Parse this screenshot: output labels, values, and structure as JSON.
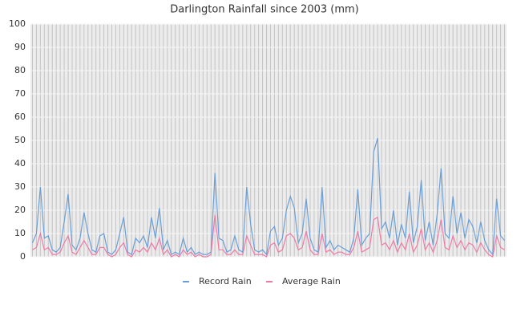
{
  "chart_data": {
    "type": "line",
    "title": "Darlington Rainfall since 2003 (mm)",
    "categories": [
      null,
      null,
      null,
      null,
      null,
      null,
      null,
      null,
      null,
      null,
      null,
      null,
      null,
      null,
      null,
      null,
      null,
      null,
      null,
      null,
      null,
      null,
      null,
      null,
      null,
      null,
      null,
      null,
      null,
      null,
      null,
      null,
      null,
      null,
      null,
      null,
      null,
      null,
      null,
      null,
      null,
      null,
      null,
      null,
      null,
      null,
      null,
      null,
      null,
      null,
      null,
      null,
      null,
      null,
      null,
      null,
      null,
      null,
      null,
      null,
      null,
      null,
      null,
      null,
      null,
      null,
      null,
      null,
      null,
      null,
      null,
      null,
      null,
      null,
      null,
      null,
      null,
      null,
      null,
      null,
      null,
      null,
      null,
      null,
      null,
      null,
      null,
      null,
      null,
      null,
      null,
      null,
      null,
      null,
      null,
      null,
      null,
      null,
      null,
      null,
      null,
      null,
      null,
      null,
      null,
      null,
      null,
      null,
      null,
      null,
      null,
      null,
      null,
      null,
      null,
      null,
      null,
      null,
      null,
      null
    ],
    "series": [
      {
        "name": "Record Rain",
        "color": "#6a9fd8",
        "values": [
          6,
          10,
          30,
          8,
          9,
          3,
          2,
          4,
          15,
          27,
          5,
          3,
          8,
          19,
          10,
          3,
          2,
          9,
          10,
          2,
          1,
          3,
          10,
          17,
          2,
          1,
          8,
          6,
          9,
          4,
          17,
          8,
          21,
          3,
          7,
          1,
          2,
          1,
          8,
          2,
          4,
          1,
          2,
          1,
          1,
          2,
          36,
          8,
          7,
          2,
          3,
          9,
          3,
          2,
          30,
          14,
          3,
          2,
          3,
          1,
          11,
          13,
          5,
          8,
          20,
          26,
          21,
          6,
          10,
          25,
          8,
          3,
          2,
          30,
          4,
          7,
          3,
          5,
          4,
          3,
          2,
          8,
          29,
          5,
          8,
          10,
          45,
          51,
          12,
          15,
          8,
          20,
          5,
          14,
          8,
          28,
          6,
          13,
          33,
          7,
          15,
          5,
          18,
          38,
          10,
          8,
          26,
          10,
          19,
          8,
          16,
          13,
          6,
          15,
          7,
          3,
          1,
          25,
          9,
          7
        ]
      },
      {
        "name": "Average Rain",
        "color": "#f07aa6",
        "values": [
          3,
          4,
          10,
          3,
          4,
          1,
          1,
          2,
          6,
          9,
          2,
          1,
          4,
          7,
          4,
          1,
          1,
          4,
          4,
          1,
          0,
          1,
          4,
          6,
          1,
          0,
          3,
          2,
          4,
          2,
          6,
          3,
          8,
          1,
          3,
          0,
          1,
          0,
          3,
          1,
          2,
          0,
          1,
          0,
          0,
          1,
          18,
          3,
          3,
          1,
          1,
          3,
          1,
          1,
          9,
          5,
          1,
          1,
          1,
          0,
          5,
          6,
          2,
          3,
          9,
          10,
          8,
          3,
          4,
          11,
          3,
          1,
          1,
          10,
          2,
          3,
          1,
          2,
          2,
          1,
          1,
          4,
          11,
          2,
          3,
          4,
          16,
          17,
          5,
          6,
          3,
          7,
          2,
          6,
          3,
          10,
          2,
          5,
          12,
          3,
          6,
          2,
          7,
          16,
          4,
          3,
          9,
          4,
          7,
          3,
          6,
          5,
          2,
          6,
          3,
          1,
          0,
          9,
          4,
          3
        ]
      }
    ],
    "ylim": [
      0,
      100
    ],
    "yticks": [
      0,
      10,
      20,
      30,
      40,
      50,
      60,
      70,
      80,
      90,
      100
    ],
    "grid": true
  }
}
